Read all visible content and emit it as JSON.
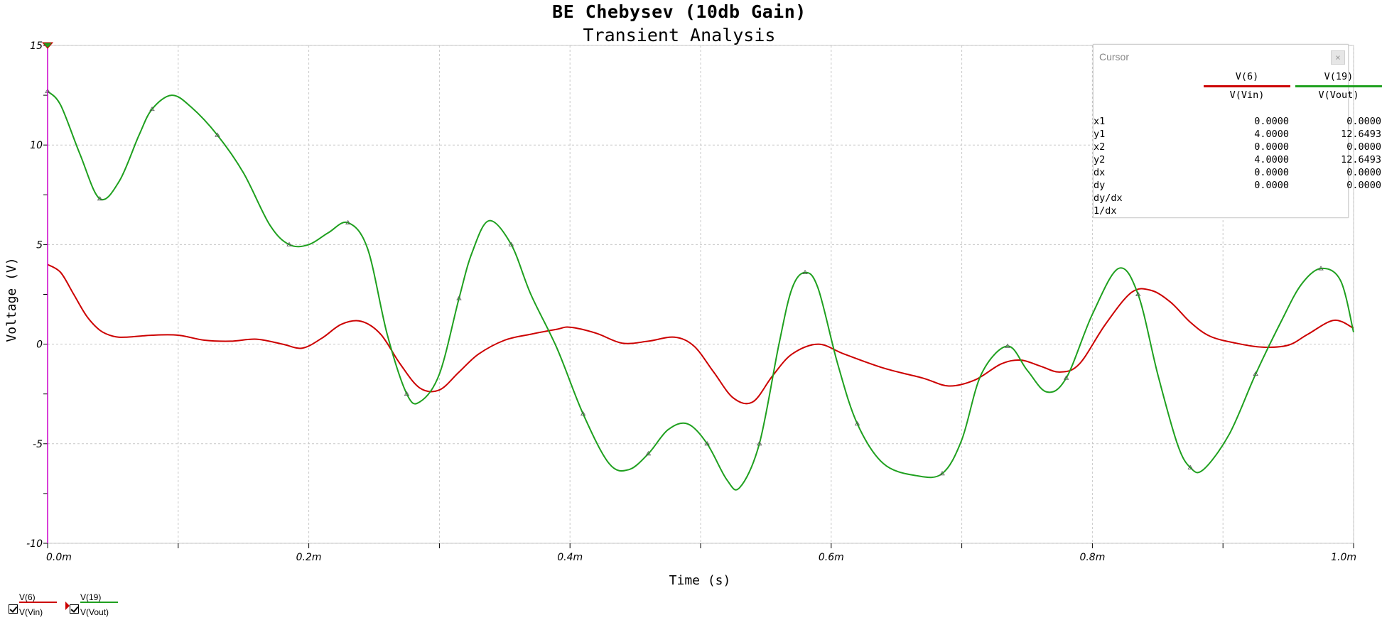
{
  "chart_data": {
    "type": "line",
    "title": "BE Chebysev (10db Gain)",
    "subtitle": "Transient Analysis",
    "xlabel": "Time (s)",
    "ylabel": "Voltage (V)",
    "xlim": [
      0,
      1.0
    ],
    "ylim": [
      -10,
      15
    ],
    "x_tick_values": [
      0,
      0.2,
      0.4,
      0.6,
      0.8,
      1.0
    ],
    "x_tick_labels": [
      "0.0m",
      "0.2m",
      "0.4m",
      "0.6m",
      "0.8m",
      "1.0m"
    ],
    "y_ticks": [
      -10,
      -5,
      0,
      5,
      10,
      15
    ],
    "grid": true,
    "series": [
      {
        "name": "V(6)",
        "label": "V(Vin)",
        "color": "#cc0000",
        "x": [
          0,
          0.01,
          0.02,
          0.03,
          0.04,
          0.05,
          0.06,
          0.08,
          0.1,
          0.12,
          0.14,
          0.16,
          0.18,
          0.195,
          0.21,
          0.225,
          0.24,
          0.255,
          0.27,
          0.285,
          0.3,
          0.315,
          0.33,
          0.35,
          0.37,
          0.39,
          0.4,
          0.42,
          0.44,
          0.46,
          0.48,
          0.495,
          0.51,
          0.525,
          0.54,
          0.555,
          0.57,
          0.59,
          0.61,
          0.64,
          0.67,
          0.69,
          0.71,
          0.73,
          0.745,
          0.76,
          0.775,
          0.79,
          0.81,
          0.83,
          0.845,
          0.86,
          0.875,
          0.89,
          0.91,
          0.93,
          0.95,
          0.965,
          0.985,
          1.0
        ],
        "y": [
          4.0,
          3.6,
          2.5,
          1.4,
          0.7,
          0.4,
          0.35,
          0.45,
          0.45,
          0.2,
          0.15,
          0.25,
          0.0,
          -0.2,
          0.3,
          1.0,
          1.15,
          0.5,
          -1.0,
          -2.2,
          -2.3,
          -1.4,
          -0.5,
          0.2,
          0.5,
          0.75,
          0.85,
          0.55,
          0.05,
          0.15,
          0.35,
          -0.1,
          -1.4,
          -2.7,
          -2.9,
          -1.6,
          -0.5,
          0.0,
          -0.5,
          -1.2,
          -1.7,
          -2.1,
          -1.8,
          -1.0,
          -0.8,
          -1.1,
          -1.4,
          -1.0,
          1.0,
          2.6,
          2.7,
          2.1,
          1.1,
          0.4,
          0.05,
          -0.15,
          -0.05,
          0.5,
          1.2,
          0.8
        ]
      },
      {
        "name": "V(19)",
        "label": "V(Vout)",
        "color": "#1fa01f",
        "x": [
          0,
          0.01,
          0.025,
          0.04,
          0.055,
          0.07,
          0.08,
          0.095,
          0.11,
          0.13,
          0.15,
          0.17,
          0.185,
          0.2,
          0.215,
          0.23,
          0.245,
          0.26,
          0.275,
          0.285,
          0.3,
          0.315,
          0.325,
          0.338,
          0.355,
          0.37,
          0.39,
          0.41,
          0.43,
          0.445,
          0.46,
          0.475,
          0.49,
          0.505,
          0.52,
          0.53,
          0.545,
          0.56,
          0.57,
          0.58,
          0.59,
          0.605,
          0.62,
          0.64,
          0.665,
          0.685,
          0.7,
          0.715,
          0.735,
          0.75,
          0.765,
          0.78,
          0.8,
          0.82,
          0.835,
          0.85,
          0.865,
          0.875,
          0.885,
          0.905,
          0.925,
          0.945,
          0.96,
          0.975,
          0.99,
          1.0
        ],
        "y": [
          12.7,
          12.0,
          9.5,
          7.3,
          8.2,
          10.5,
          11.8,
          12.5,
          11.9,
          10.5,
          8.6,
          6.0,
          5.0,
          5.0,
          5.6,
          6.1,
          4.8,
          0.5,
          -2.5,
          -2.9,
          -1.5,
          2.3,
          4.6,
          6.2,
          5.0,
          2.5,
          -0.2,
          -3.5,
          -6.0,
          -6.3,
          -5.5,
          -4.3,
          -4.0,
          -5.0,
          -6.8,
          -7.2,
          -5.0,
          0.0,
          2.8,
          3.6,
          2.8,
          -1.0,
          -4.0,
          -6.0,
          -6.6,
          -6.5,
          -4.8,
          -1.5,
          -0.1,
          -1.3,
          -2.4,
          -1.7,
          1.5,
          3.8,
          2.5,
          -1.5,
          -5.0,
          -6.2,
          -6.3,
          -4.5,
          -1.5,
          1.2,
          3.0,
          3.8,
          3.2,
          0.6
        ]
      }
    ]
  },
  "cursor_panel": {
    "title": "Cursor",
    "close_label": "×",
    "columns": [
      {
        "name": "V(6)",
        "label": "V(Vin)",
        "color": "#cc0000"
      },
      {
        "name": "V(19)",
        "label": "V(Vout)",
        "color": "#1fa01f"
      }
    ],
    "rows": [
      {
        "label": "x1",
        "values": [
          "0.0000",
          "0.0000"
        ]
      },
      {
        "label": "y1",
        "values": [
          "4.0000",
          "12.6493"
        ]
      },
      {
        "label": "x2",
        "values": [
          "0.0000",
          "0.0000"
        ]
      },
      {
        "label": "y2",
        "values": [
          "4.0000",
          "12.6493"
        ]
      },
      {
        "label": "dx",
        "values": [
          "0.0000",
          "0.0000"
        ]
      },
      {
        "label": "dy",
        "values": [
          "0.0000",
          "0.0000"
        ]
      },
      {
        "label": "dy/dx",
        "values": [
          "",
          ""
        ]
      },
      {
        "label": "1/dx",
        "values": [
          "",
          ""
        ]
      }
    ]
  },
  "legend": {
    "items": [
      {
        "name": "V(6)",
        "label": "V(Vin)",
        "color": "#cc0000",
        "checked": true
      },
      {
        "name": "V(19)",
        "label": "V(Vout)",
        "color": "#1fa01f",
        "checked": true
      }
    ]
  },
  "cursor_color": "#cc00cc"
}
